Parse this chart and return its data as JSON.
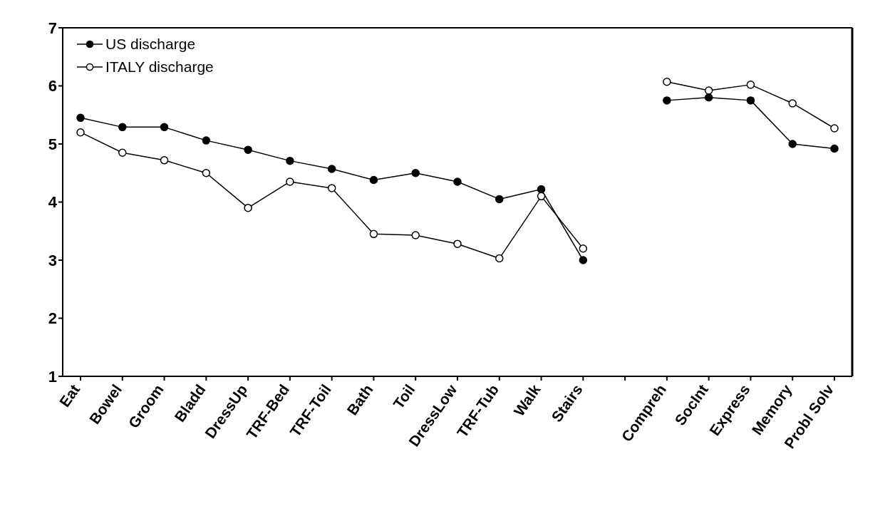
{
  "chart_data": {
    "type": "line",
    "categories": [
      "Eat",
      "Bowel",
      "Groom",
      "Bladd",
      "DressUp",
      "TRF-Bed",
      "TRF-Toil",
      "Bath",
      "Toil",
      "DressLow",
      "TRF-Tub",
      "Walk",
      "Stairs",
      null,
      "Compreh",
      "SocInt",
      "Express",
      "Memory",
      "Probl Solv"
    ],
    "series": [
      {
        "name": "US discharge",
        "color": "#000000",
        "marker": "circle",
        "values": [
          5.45,
          5.29,
          5.29,
          5.06,
          4.9,
          4.71,
          4.57,
          4.38,
          4.5,
          4.35,
          4.05,
          4.22,
          3.0,
          null,
          5.75,
          5.8,
          5.75,
          5.0,
          4.92
        ]
      },
      {
        "name": "ITALY discharge",
        "color": "#000000",
        "marker": "circle",
        "values": [
          5.2,
          4.85,
          4.72,
          4.5,
          3.9,
          4.35,
          4.24,
          3.45,
          3.43,
          3.28,
          3.03,
          4.1,
          3.2,
          null,
          6.07,
          5.92,
          6.02,
          5.7,
          5.27
        ]
      }
    ],
    "ylim": [
      1,
      7
    ],
    "yticks": [
      1,
      2,
      3,
      4,
      5,
      6,
      7
    ],
    "grid": false,
    "legend": "top left",
    "line_style": "solid"
  }
}
